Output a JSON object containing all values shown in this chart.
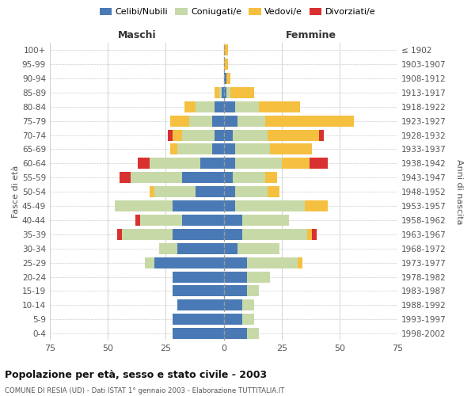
{
  "age_groups": [
    "0-4",
    "5-9",
    "10-14",
    "15-19",
    "20-24",
    "25-29",
    "30-34",
    "35-39",
    "40-44",
    "45-49",
    "50-54",
    "55-59",
    "60-64",
    "65-69",
    "70-74",
    "75-79",
    "80-84",
    "85-89",
    "90-94",
    "95-99",
    "100+"
  ],
  "birth_years": [
    "1998-2002",
    "1993-1997",
    "1988-1992",
    "1983-1987",
    "1978-1982",
    "1973-1977",
    "1968-1972",
    "1963-1967",
    "1958-1962",
    "1953-1957",
    "1948-1952",
    "1943-1947",
    "1938-1942",
    "1933-1937",
    "1928-1932",
    "1923-1927",
    "1918-1922",
    "1913-1917",
    "1908-1912",
    "1903-1907",
    "≤ 1902"
  ],
  "maschi_celibi": [
    22,
    22,
    20,
    22,
    22,
    30,
    20,
    22,
    18,
    22,
    12,
    18,
    10,
    5,
    4,
    5,
    4,
    1,
    0,
    0,
    0
  ],
  "maschi_coniugati": [
    0,
    0,
    0,
    0,
    0,
    4,
    8,
    22,
    18,
    25,
    18,
    22,
    22,
    15,
    14,
    10,
    8,
    1,
    0,
    0,
    0
  ],
  "maschi_vedovi": [
    0,
    0,
    0,
    0,
    0,
    0,
    0,
    0,
    0,
    0,
    2,
    0,
    0,
    3,
    4,
    8,
    5,
    2,
    0,
    0,
    0
  ],
  "maschi_divorziati": [
    0,
    0,
    0,
    0,
    0,
    0,
    0,
    2,
    2,
    0,
    0,
    5,
    5,
    0,
    2,
    0,
    0,
    0,
    0,
    0,
    0
  ],
  "femmine_nubili": [
    10,
    8,
    8,
    10,
    10,
    10,
    6,
    8,
    8,
    5,
    5,
    4,
    5,
    5,
    4,
    6,
    5,
    1,
    1,
    0,
    0
  ],
  "femmine_coniugate": [
    5,
    5,
    5,
    5,
    10,
    22,
    18,
    28,
    20,
    30,
    14,
    14,
    20,
    15,
    15,
    12,
    10,
    2,
    0,
    0,
    0
  ],
  "femmine_vedove": [
    0,
    0,
    0,
    0,
    0,
    2,
    0,
    2,
    0,
    10,
    5,
    5,
    12,
    18,
    22,
    38,
    18,
    10,
    2,
    2,
    2
  ],
  "femmine_divorziate": [
    0,
    0,
    0,
    0,
    0,
    0,
    0,
    2,
    0,
    0,
    0,
    0,
    8,
    0,
    2,
    0,
    0,
    0,
    0,
    0,
    0
  ],
  "colors_celibi": "#4a7ab5",
  "colors_coniugati": "#c8d9a8",
  "colors_vedovi": "#f5c040",
  "colors_divorziati": "#d93030",
  "title": "Popolazione per età, sesso e stato civile - 2003",
  "subtitle": "COMUNE DI RESIA (UD) - Dati ISTAT 1° gennaio 2003 - Elaborazione TUTTITALIA.IT",
  "label_maschi": "Maschi",
  "label_femmine": "Femmine",
  "ylabel_left": "Fasce di età",
  "ylabel_right": "Anni di nascita",
  "xlim": 75,
  "legend_labels": [
    "Celibi/Nubili",
    "Coniugati/e",
    "Vedovi/e",
    "Divorziati/e"
  ],
  "bg_color": "#ffffff",
  "grid_color": "#cccccc"
}
